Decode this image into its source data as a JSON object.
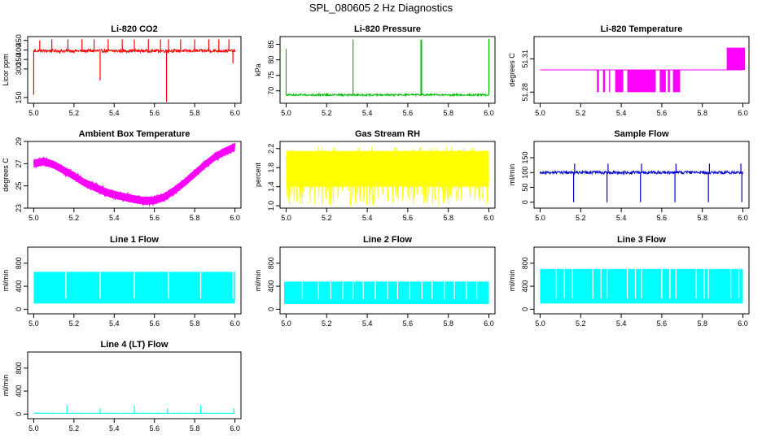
{
  "figure_title": "SPL_080605  2 Hz Diagnostics",
  "chart_data": [
    {
      "type": "line",
      "title": "Li-820 CO2",
      "xlabel": "",
      "ylabel": "Licor ppm",
      "xlim": [
        4.97,
        6.03
      ],
      "ylim": [
        120,
        470
      ],
      "xticks": [
        5.0,
        5.2,
        5.4,
        5.6,
        5.8,
        6.0
      ],
      "xticklabels": [
        "5.0",
        "5.2",
        "5.4",
        "5.6",
        "5.8",
        "6.0"
      ],
      "yticks": [
        150,
        300,
        350,
        400,
        450
      ],
      "yticklabels": [
        "150",
        "300",
        "350",
        "400",
        "450"
      ],
      "series": [
        {
          "color": "#ff0000",
          "style": "noisy",
          "baseline": 395,
          "noise": 8,
          "spikes": [
            {
              "x": 5.0,
              "y": 165
            },
            {
              "x": 5.03,
              "y": 450
            },
            {
              "x": 5.09,
              "y": 455
            },
            {
              "x": 5.13,
              "y": 380
            },
            {
              "x": 5.17,
              "y": 455
            },
            {
              "x": 5.24,
              "y": 455
            },
            {
              "x": 5.3,
              "y": 455
            },
            {
              "x": 5.33,
              "y": 240
            },
            {
              "x": 5.37,
              "y": 455
            },
            {
              "x": 5.44,
              "y": 455
            },
            {
              "x": 5.5,
              "y": 455
            },
            {
              "x": 5.57,
              "y": 455
            },
            {
              "x": 5.63,
              "y": 455
            },
            {
              "x": 5.66,
              "y": 128
            },
            {
              "x": 5.67,
              "y": 455
            },
            {
              "x": 5.73,
              "y": 455
            },
            {
              "x": 5.8,
              "y": 455
            },
            {
              "x": 5.87,
              "y": 455
            },
            {
              "x": 5.92,
              "y": 455
            },
            {
              "x": 5.97,
              "y": 455
            },
            {
              "x": 5.99,
              "y": 330
            }
          ]
        }
      ]
    },
    {
      "type": "line",
      "title": "Li-820 Pressure",
      "xlabel": "",
      "ylabel": "kPa",
      "xlim": [
        4.97,
        6.03
      ],
      "ylim": [
        66,
        87.5
      ],
      "xticks": [
        5.0,
        5.2,
        5.4,
        5.6,
        5.8,
        6.0
      ],
      "xticklabels": [
        "5.0",
        "5.2",
        "5.4",
        "5.6",
        "5.8",
        "6.0"
      ],
      "yticks": [
        70,
        75,
        80,
        85
      ],
      "yticklabels": [
        "70",
        "75",
        "80",
        "85"
      ],
      "series": [
        {
          "color": "#00bb00",
          "style": "noisy",
          "baseline": 68.7,
          "noise": 0.3,
          "spikes": [
            {
              "x": 5.0,
              "y": 83.5
            },
            {
              "x": 5.33,
              "y": 86.5
            },
            {
              "x": 5.665,
              "y": 86.5
            },
            {
              "x": 5.668,
              "y": 86.5
            },
            {
              "x": 6.0,
              "y": 86.8
            }
          ]
        }
      ]
    },
    {
      "type": "line",
      "title": "Li-820 Temperature",
      "xlabel": "",
      "ylabel": "degrees C",
      "xlim": [
        4.97,
        6.03
      ],
      "ylim": [
        51.27,
        51.33
      ],
      "xticks": [
        5.0,
        5.2,
        5.4,
        5.6,
        5.8,
        6.0
      ],
      "xticklabels": [
        "5.0",
        "5.2",
        "5.4",
        "5.6",
        "5.8",
        "6.0"
      ],
      "yticks": [
        51.28,
        51.31
      ],
      "yticklabels": [
        "51.28",
        "51.31"
      ],
      "series": [
        {
          "color": "#ff00ff",
          "style": "levels",
          "baseline": 51.3,
          "low": 51.28,
          "high": 51.32,
          "low_blocks": [
            [
              5.28,
              5.29
            ],
            [
              5.31,
              5.32
            ],
            [
              5.34,
              5.345
            ],
            [
              5.37,
              5.41
            ],
            [
              5.43,
              5.57
            ],
            [
              5.59,
              5.62
            ],
            [
              5.63,
              5.64
            ],
            [
              5.655,
              5.69
            ]
          ],
          "high_blocks": [
            [
              5.92,
              6.01
            ]
          ]
        }
      ]
    },
    {
      "type": "line",
      "title": "Ambient Box Temperature",
      "xlabel": "",
      "ylabel": "degrees C",
      "xlim": [
        4.97,
        6.03
      ],
      "ylim": [
        23,
        29
      ],
      "xticks": [
        5.0,
        5.2,
        5.4,
        5.6,
        5.8,
        6.0
      ],
      "xticklabels": [
        "5.0",
        "5.2",
        "5.4",
        "5.6",
        "5.8",
        "6.0"
      ],
      "yticks": [
        23,
        25,
        27,
        29
      ],
      "yticklabels": [
        "23",
        "25",
        "27",
        "29"
      ],
      "series": [
        {
          "color": "#ff00ff",
          "style": "band",
          "x": [
            5.0,
            5.05,
            5.1,
            5.15,
            5.2,
            5.25,
            5.3,
            5.35,
            5.4,
            5.45,
            5.5,
            5.55,
            5.6,
            5.65,
            5.7,
            5.75,
            5.8,
            5.85,
            5.9,
            5.95,
            6.0
          ],
          "y": [
            27.0,
            27.2,
            26.9,
            26.4,
            25.9,
            25.3,
            24.9,
            24.5,
            24.2,
            24.0,
            23.8,
            23.65,
            23.7,
            24.0,
            24.6,
            25.3,
            26.1,
            26.9,
            27.6,
            28.1,
            28.5
          ],
          "width": 0.7
        }
      ]
    },
    {
      "type": "line",
      "title": "Gas Stream RH",
      "xlabel": "",
      "ylabel": "percent",
      "xlim": [
        4.97,
        6.03
      ],
      "ylim": [
        0.95,
        2.35
      ],
      "xticks": [
        5.0,
        5.2,
        5.4,
        5.6,
        5.8,
        6.0
      ],
      "xticklabels": [
        "5.0",
        "5.2",
        "5.4",
        "5.6",
        "5.8",
        "6.0"
      ],
      "yticks": [
        1.0,
        1.4,
        1.8,
        2.2
      ],
      "yticklabels": [
        "1.0",
        "1.4",
        "1.8",
        "2.2"
      ],
      "series": [
        {
          "color": "#ffff00",
          "style": "fill_noise",
          "baseline": 1.75,
          "upper": 2.15,
          "lower": 1.4,
          "min": 1.0,
          "max": 2.25
        }
      ]
    },
    {
      "type": "line",
      "title": "Sample Flow",
      "xlabel": "",
      "ylabel": "ml/min",
      "xlim": [
        4.97,
        6.03
      ],
      "ylim": [
        -20,
        205
      ],
      "xticks": [
        5.0,
        5.2,
        5.4,
        5.6,
        5.8,
        6.0
      ],
      "xticklabels": [
        "5.0",
        "5.2",
        "5.4",
        "5.6",
        "5.8",
        "6.0"
      ],
      "yticks": [
        0,
        50,
        100,
        150
      ],
      "yticklabels": [
        "0",
        "50",
        "100",
        "150"
      ],
      "series": [
        {
          "color": "#0000cc",
          "style": "noisy",
          "baseline": 100,
          "noise": 5,
          "spikes": [
            {
              "x": 5.165,
              "y": 0
            },
            {
              "x": 5.17,
              "y": 130
            },
            {
              "x": 5.33,
              "y": 0
            },
            {
              "x": 5.335,
              "y": 130
            },
            {
              "x": 5.495,
              "y": 0
            },
            {
              "x": 5.5,
              "y": 130
            },
            {
              "x": 5.665,
              "y": 0
            },
            {
              "x": 5.67,
              "y": 130
            },
            {
              "x": 5.83,
              "y": 0
            },
            {
              "x": 5.835,
              "y": 130
            },
            {
              "x": 5.995,
              "y": 0
            },
            {
              "x": 5.99,
              "y": 130
            }
          ]
        }
      ]
    },
    {
      "type": "line",
      "title": "Line 1 Flow",
      "xlabel": "",
      "ylabel": "ml/min",
      "xlim": [
        4.97,
        6.03
      ],
      "ylim": [
        -80,
        1080
      ],
      "xticks": [
        5.0,
        5.2,
        5.4,
        5.6,
        5.8,
        6.0
      ],
      "xticklabels": [
        "5.0",
        "5.2",
        "5.4",
        "5.6",
        "5.8",
        "6.0"
      ],
      "yticks": [
        0,
        400,
        800
      ],
      "yticklabels": [
        "0",
        "400",
        "800"
      ],
      "series": [
        {
          "color": "#00ffff",
          "style": "block",
          "low": 100,
          "high": 650,
          "start": 5.0,
          "end": 6.0,
          "gaps": [
            5.16,
            5.33,
            5.5,
            5.67,
            5.83,
            5.99
          ]
        }
      ]
    },
    {
      "type": "line",
      "title": "Line 2 Flow",
      "xlabel": "",
      "ylabel": "ml/min",
      "xlim": [
        4.97,
        6.03
      ],
      "ylim": [
        -80,
        1080
      ],
      "xticks": [
        5.0,
        5.2,
        5.4,
        5.6,
        5.8,
        6.0
      ],
      "xticklabels": [
        "5.0",
        "5.2",
        "5.4",
        "5.6",
        "5.8",
        "6.0"
      ],
      "yticks": [
        0,
        400,
        800
      ],
      "yticklabels": [
        "0",
        "400",
        "800"
      ],
      "series": [
        {
          "color": "#00ffff",
          "style": "block",
          "low": 90,
          "high": 480,
          "start": 4.99,
          "end": 6.0,
          "gaps": [
            5.08,
            5.16,
            5.22,
            5.28,
            5.33,
            5.38,
            5.44,
            5.5,
            5.55,
            5.61,
            5.67,
            5.72,
            5.78,
            5.83,
            5.89,
            5.94
          ]
        }
      ]
    },
    {
      "type": "line",
      "title": "Line 3 Flow",
      "xlabel": "",
      "ylabel": "ml/min",
      "xlim": [
        4.97,
        6.03
      ],
      "ylim": [
        -80,
        1080
      ],
      "xticks": [
        5.0,
        5.2,
        5.4,
        5.6,
        5.8,
        6.0
      ],
      "xticklabels": [
        "5.0",
        "5.2",
        "5.4",
        "5.6",
        "5.8",
        "6.0"
      ],
      "yticks": [
        0,
        400,
        800
      ],
      "yticklabels": [
        "0",
        "400",
        "800"
      ],
      "series": [
        {
          "color": "#00ffff",
          "style": "block",
          "low": 100,
          "high": 700,
          "start": 5.0,
          "end": 6.0,
          "gaps": [
            5.08,
            5.12,
            5.16,
            5.26,
            5.3,
            5.33,
            5.43,
            5.47,
            5.5,
            5.6,
            5.64,
            5.67,
            5.77,
            5.81,
            5.83,
            5.94,
            5.98
          ]
        }
      ]
    },
    {
      "type": "line",
      "title": "Line 4 (LT) Flow",
      "xlabel": "",
      "ylabel": "ml/min",
      "xlim": [
        4.97,
        6.03
      ],
      "ylim": [
        -80,
        1080
      ],
      "xticks": [
        5.0,
        5.2,
        5.4,
        5.6,
        5.8,
        6.0
      ],
      "xticklabels": [
        "5.0",
        "5.2",
        "5.4",
        "5.6",
        "5.8",
        "6.0"
      ],
      "yticks": [
        0,
        400,
        800
      ],
      "yticklabels": [
        "0",
        "400",
        "800"
      ],
      "series": [
        {
          "color": "#00ffff",
          "style": "noisy",
          "baseline": 15,
          "noise": 4,
          "spikes": [
            {
              "x": 5.165,
              "y": 150
            },
            {
              "x": 5.33,
              "y": 100
            },
            {
              "x": 5.5,
              "y": 150
            },
            {
              "x": 5.665,
              "y": 100
            },
            {
              "x": 5.83,
              "y": 150
            },
            {
              "x": 5.995,
              "y": 100
            }
          ]
        }
      ]
    }
  ]
}
